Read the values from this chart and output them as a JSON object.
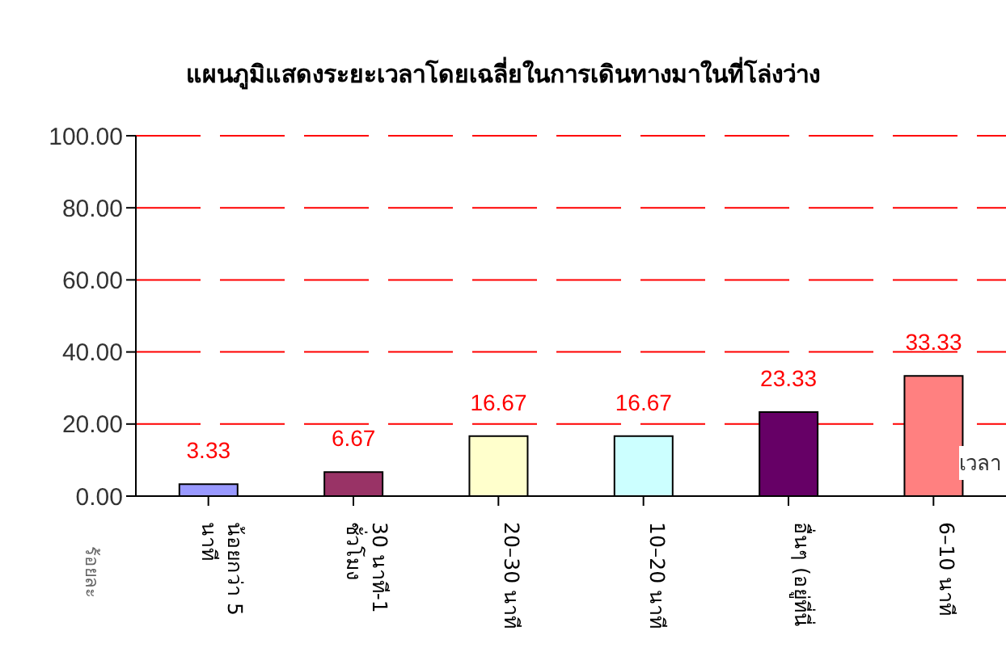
{
  "chart_data": {
    "type": "bar",
    "title": "แผนภูมิแสดงระยะเวลาโดยเฉลี่ยในการเดินทางมาในที่โล่งว่าง",
    "xlabel": "เวลา",
    "ylabel": "ร้อยละ",
    "categories": [
      "น้อยกว่า 5 นาที",
      "30 นาที-1 ชั่วโมง",
      "20–30 นาที",
      "10–20 นาที",
      "อื่นๆ (อยู่ที่นี่",
      "6–10 นาที"
    ],
    "values": [
      3.33,
      6.67,
      16.67,
      16.67,
      23.33,
      33.33
    ],
    "colors": [
      "#9999ff",
      "#993366",
      "#ffffcc",
      "#ccffff",
      "#660066",
      "#ff8080"
    ],
    "ylim": [
      0,
      100
    ],
    "yticks": [
      {
        "value": 0,
        "label": "0.00"
      },
      {
        "value": 20,
        "label": "20.00"
      },
      {
        "value": 40,
        "label": "40.00"
      },
      {
        "value": 60,
        "label": "60.00"
      },
      {
        "value": 80,
        "label": "80.00"
      },
      {
        "value": 100,
        "label": "100.00"
      }
    ],
    "grid": "y",
    "data_labels": true
  }
}
